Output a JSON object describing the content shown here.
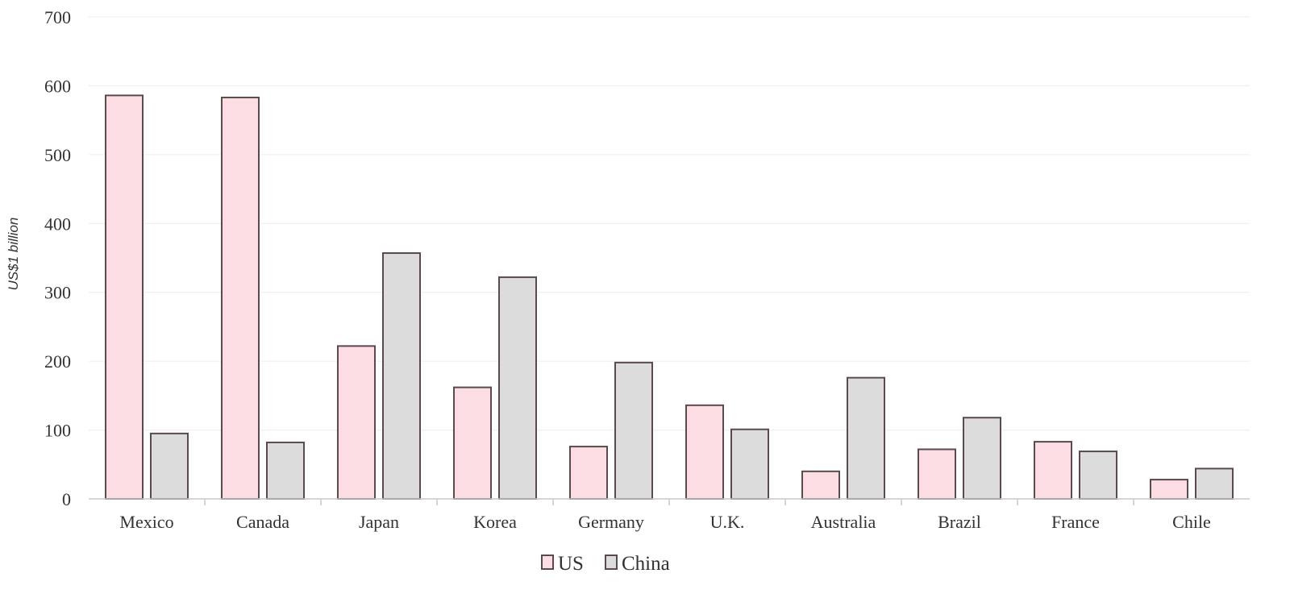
{
  "chart_data": {
    "type": "bar",
    "title": "",
    "xlabel": "",
    "ylabel": "US$1 billion",
    "ylim": [
      0,
      700
    ],
    "yticks": [
      0,
      100,
      200,
      300,
      400,
      500,
      600,
      700
    ],
    "grid": true,
    "legend_position": "bottom",
    "categories": [
      "Mexico",
      "Canada",
      "Japan",
      "Korea",
      "Germany",
      "U.K.",
      "Australia",
      "Brazil",
      "France",
      "Chile"
    ],
    "series": [
      {
        "name": "US",
        "color": "#fcdde3",
        "values": [
          586,
          583,
          222,
          162,
          76,
          136,
          40,
          72,
          83,
          28
        ]
      },
      {
        "name": "China",
        "color": "#dcdcdc",
        "values": [
          95,
          82,
          357,
          322,
          198,
          101,
          176,
          118,
          69,
          44
        ]
      }
    ],
    "bar_edge_color": "#5a4a4e"
  }
}
